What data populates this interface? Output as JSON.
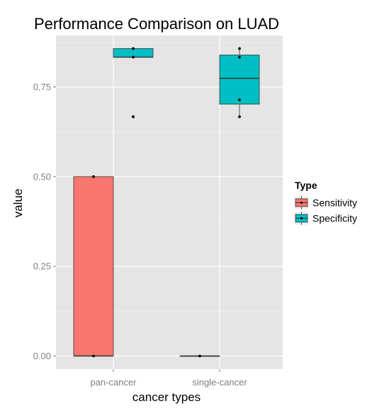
{
  "chart_data": {
    "type": "boxplot",
    "title": "Performance Comparison on LUAD",
    "xlabel": "cancer types",
    "ylabel": "value",
    "categories": [
      "pan-cancer",
      "single-cancer"
    ],
    "ylim": [
      -0.04,
      0.88
    ],
    "yticks": [
      0.0,
      0.25,
      0.5,
      0.75
    ],
    "ytick_labels": [
      "0.00",
      "0.25",
      "0.50",
      "0.75"
    ],
    "grid": true,
    "background": "#e5e5e5",
    "legend": {
      "title": "Type",
      "position": "right",
      "entries": [
        "Sensitivity",
        "Specificity"
      ]
    },
    "series": [
      {
        "name": "Sensitivity",
        "color": "#f8766d",
        "boxes": [
          {
            "category": "pan-cancer",
            "min": 0.0,
            "q1": 0.0,
            "median": 0.0,
            "q3": 0.5,
            "max": 0.5,
            "points": [
              0.0,
              0.5
            ]
          },
          {
            "category": "single-cancer",
            "min": 0.0,
            "q1": 0.0,
            "median": 0.0,
            "q3": 0.0,
            "max": 0.0,
            "points": [
              0.0
            ]
          }
        ]
      },
      {
        "name": "Specificity",
        "color": "#00bfc4",
        "boxes": [
          {
            "category": "pan-cancer",
            "min": 0.833,
            "q1": 0.833,
            "median": 0.833,
            "q3": 0.857,
            "max": 0.857,
            "points": [
              0.857,
              0.833,
              0.667
            ],
            "outliers": [
              0.667
            ]
          },
          {
            "category": "single-cancer",
            "min": 0.667,
            "q1": 0.702,
            "median": 0.774,
            "q3": 0.839,
            "max": 0.857,
            "points": [
              0.857,
              0.833,
              0.714,
              0.667
            ]
          }
        ]
      }
    ]
  }
}
